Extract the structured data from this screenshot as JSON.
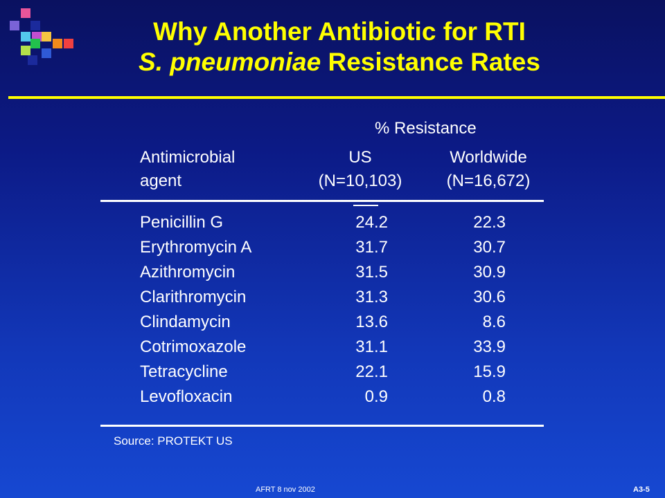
{
  "logo": {
    "icon": "colored-squares-logo",
    "colors": [
      "#e8559a",
      "#7a63d8",
      "#c34ed1",
      "#53c8ec",
      "#f5c542",
      "#22c04d",
      "#f08a1c",
      "#f04040",
      "#b3e04a",
      "#2f5ad6",
      "#1b2a9c"
    ]
  },
  "title": {
    "line1": "Why Another Antibiotic for RTI",
    "line2_italic": "S. pneumoniae",
    "line2_rest": " Resistance Rates"
  },
  "table": {
    "super_header": "% Resistance",
    "col1_header": [
      "Antimicrobial",
      "agent"
    ],
    "col2_header": [
      "US",
      "(N=10,103)"
    ],
    "col3_header": [
      "Worldwide",
      "(N=16,672)"
    ],
    "rows": [
      {
        "agent": "Penicillin G",
        "us": "24.2",
        "worldwide": "22.3"
      },
      {
        "agent": "Erythromycin A",
        "us": "31.7",
        "worldwide": "30.7"
      },
      {
        "agent": "Azithromycin",
        "us": "31.5",
        "worldwide": "30.9"
      },
      {
        "agent": "Clarithromycin",
        "us": "31.3",
        "worldwide": "30.6"
      },
      {
        "agent": "Clindamycin",
        "us": "13.6",
        "worldwide": "8.6"
      },
      {
        "agent": "Cotrimoxazole",
        "us": "31.1",
        "worldwide": "33.9"
      },
      {
        "agent": "Tetracycline",
        "us": "22.1",
        "worldwide": "15.9"
      },
      {
        "agent": "Levofloxacin",
        "us": "0.9",
        "worldwide": "0.8"
      }
    ]
  },
  "source": "Source: PROTEKT US",
  "footer": {
    "left": "AFRT 8 nov 2002",
    "right": "A3-5"
  },
  "colors": {
    "title": "#ffff00",
    "text": "#ffffff",
    "background": "#0c1a86"
  }
}
